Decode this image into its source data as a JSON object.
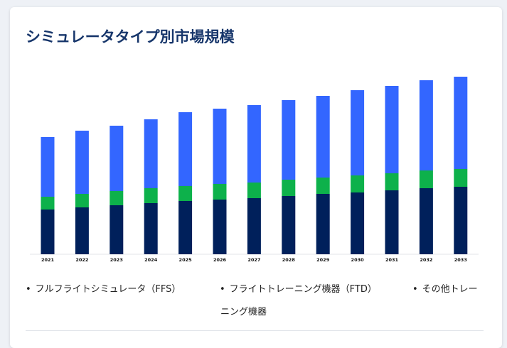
{
  "title": "シミュレータタイプ別市場規模",
  "colors": {
    "FFS": "#3366ff",
    "FTD": "#0db14b",
    "other": "#00205b",
    "title": "#17366b"
  },
  "chart_data": {
    "type": "bar",
    "stacked": true,
    "title": "シミュレータタイプ別市場規模",
    "xlabel": "",
    "ylabel": "",
    "grid": false,
    "legend_placement": "bottom",
    "categories": [
      "2021",
      "2022",
      "2023",
      "2024",
      "2025",
      "2026",
      "2027",
      "2028",
      "2029",
      "2030",
      "2031",
      "2032",
      "2033"
    ],
    "ylim": [
      0,
      250
    ],
    "series": [
      {
        "name": "その他トレーニング機器",
        "color": "#00205b",
        "values": [
          63,
          66,
          69,
          72,
          75,
          77,
          79,
          82,
          85,
          87,
          90,
          93,
          95
        ]
      },
      {
        "name": "フライトトレーニング機器（FTD）",
        "color": "#0db14b",
        "values": [
          18,
          19,
          20,
          21,
          21,
          22,
          22,
          23,
          23,
          24,
          24,
          25,
          25
        ]
      },
      {
        "name": "フルフライトシミュレータ（FFS）",
        "color": "#3366ff",
        "values": [
          84,
          89,
          92,
          97,
          104,
          106,
          109,
          112,
          115,
          120,
          123,
          127,
          130
        ]
      }
    ]
  },
  "legend": [
    {
      "label": "フルフライトシミュレータ（FFS）",
      "bullet": "•"
    },
    {
      "label": "フライトトレーニング機器（FTD）",
      "bullet": "•"
    },
    {
      "label_line1": "その他トレー",
      "label_line2": "ニング機器",
      "bullet": "•"
    }
  ]
}
